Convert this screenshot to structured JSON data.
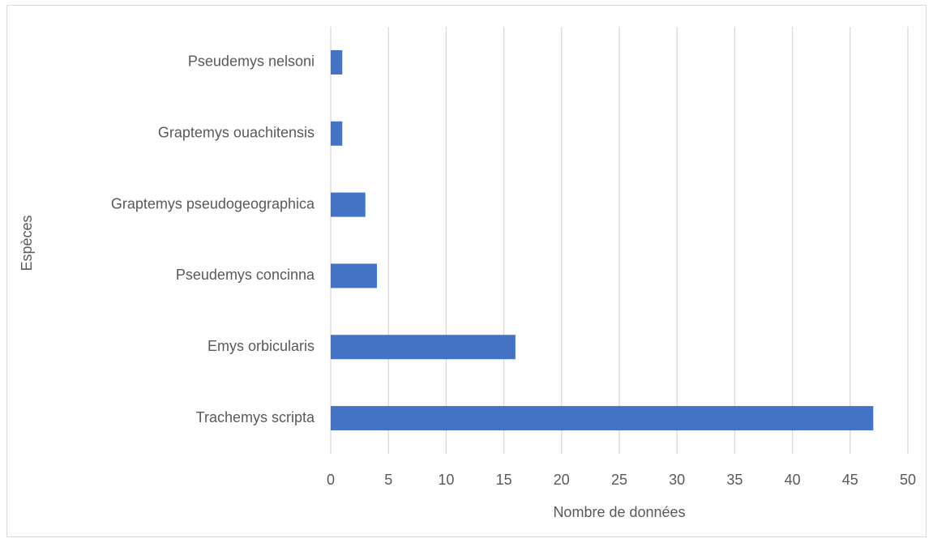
{
  "chart_data": {
    "type": "bar",
    "orientation": "horizontal",
    "xlabel": "Nombre de données",
    "ylabel": "Espèces",
    "categories": [
      "Pseudemys nelsoni",
      "Graptemys ouachitensis",
      "Graptemys pseudogeographica",
      "Pseudemys concinna",
      "Emys orbicularis",
      "Trachemys scripta"
    ],
    "values": [
      1,
      1,
      3,
      4,
      16,
      47
    ],
    "color": "#4472c4",
    "xlim": [
      0,
      50
    ],
    "xticks": [
      0,
      5,
      10,
      15,
      20,
      25,
      30,
      35,
      40,
      45,
      50
    ],
    "grid": true
  }
}
